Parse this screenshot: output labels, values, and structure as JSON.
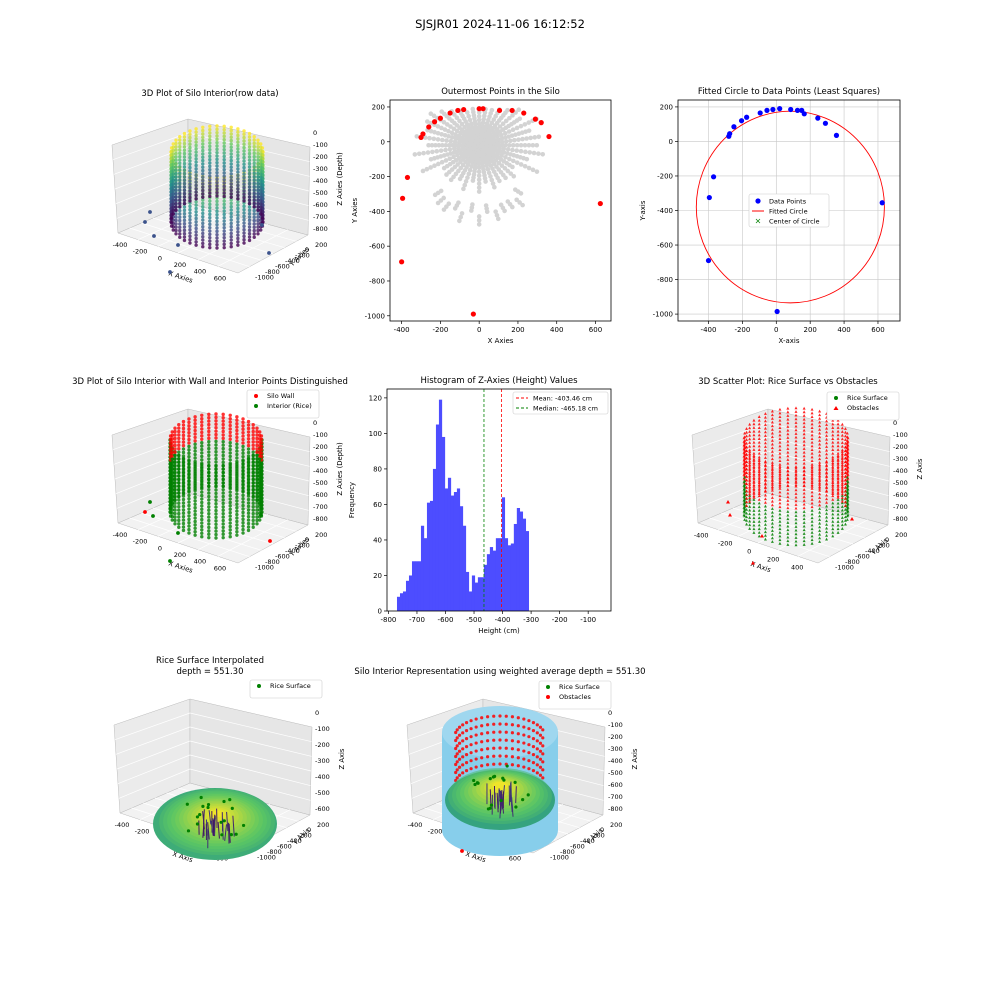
{
  "figure": {
    "suptitle": "SJSJR01 2024-11-06 16:12:52"
  },
  "colors": {
    "viridis": [
      "#440154",
      "#3b528b",
      "#21918c",
      "#5ec962",
      "#fde725"
    ],
    "wall": "#ff0000",
    "interior": "#008000",
    "scatter_gray": "#d3d3d3",
    "data_blue": "#0000ff",
    "hist_blue": "#4d4dff",
    "mean_red": "#ff0000",
    "median_green": "#008000",
    "cylinder": "#87ceeb"
  },
  "chart_data": [
    {
      "id": "p1",
      "type": "scatter3d",
      "title": "3D Plot of Silo Interior(row data)",
      "xlabel": "X Axies",
      "ylabel": "Y Axies",
      "zlabel": "Z Axies (Depth)",
      "x_ticks": [
        "-400",
        "-200",
        "0",
        "200",
        "400",
        "600"
      ],
      "y_ticks": [
        "-1000",
        "-800",
        "-600",
        "-400",
        "-200",
        "0",
        "200"
      ],
      "z_ticks": [
        "-800",
        "-700",
        "-600",
        "-500",
        "-400",
        "-300",
        "-200",
        "-100",
        "0"
      ],
      "colormap": "viridis"
    },
    {
      "id": "p2",
      "type": "scatter",
      "title": "Outermost Points in the Silo",
      "xlabel": "X Axies",
      "ylabel": "Y Axies",
      "x_ticks": [
        -400,
        -200,
        0,
        200,
        400,
        600
      ],
      "y_ticks": [
        200,
        0,
        -200,
        -400,
        -600,
        -800,
        -1000
      ],
      "xlim": [
        -460,
        680
      ],
      "ylim": [
        -1030,
        240
      ],
      "outer_points": [
        [
          -400,
          -690
        ],
        [
          -395,
          -325
        ],
        [
          -370,
          -205
        ],
        [
          -300,
          25
        ],
        [
          -290,
          45
        ],
        [
          -260,
          85
        ],
        [
          -230,
          115
        ],
        [
          -200,
          135
        ],
        [
          -150,
          165
        ],
        [
          -110,
          180
        ],
        [
          -80,
          185
        ],
        [
          0,
          190
        ],
        [
          20,
          190
        ],
        [
          105,
          180
        ],
        [
          170,
          180
        ],
        [
          230,
          165
        ],
        [
          290,
          130
        ],
        [
          320,
          110
        ],
        [
          -30,
          -990
        ],
        [
          360,
          30
        ],
        [
          625,
          -355
        ]
      ]
    },
    {
      "id": "p3",
      "type": "scatter",
      "title": "Fitted Circle to Data Points (Least Squares)",
      "xlabel": "X-axis",
      "ylabel": "Y-axis",
      "x_ticks": [
        -400,
        -200,
        0,
        200,
        400,
        600
      ],
      "y_ticks": [
        200,
        0,
        -200,
        -400,
        -600,
        -800,
        -1000
      ],
      "xlim": [
        -580,
        730
      ],
      "ylim": [
        -1040,
        240
      ],
      "legend": [
        "Data Points",
        "Fitted Circle",
        "Center of Circle"
      ],
      "circle": {
        "cx": 83,
        "cy": -380,
        "r": 555
      },
      "points": [
        [
          -400,
          -690
        ],
        [
          -395,
          -325
        ],
        [
          -370,
          -205
        ],
        [
          -280,
          30
        ],
        [
          -275,
          45
        ],
        [
          -250,
          85
        ],
        [
          -205,
          120
        ],
        [
          -175,
          140
        ],
        [
          -95,
          165
        ],
        [
          -55,
          180
        ],
        [
          -20,
          185
        ],
        [
          20,
          190
        ],
        [
          85,
          185
        ],
        [
          125,
          180
        ],
        [
          165,
          160
        ],
        [
          245,
          135
        ],
        [
          290,
          105
        ],
        [
          355,
          35
        ],
        [
          625,
          -355
        ],
        [
          5,
          -985
        ],
        [
          150,
          180
        ]
      ]
    },
    {
      "id": "p4",
      "type": "scatter3d",
      "title": "3D Plot of Silo Interior with Wall and Interior Points Distinguished",
      "xlabel": "X Axies",
      "ylabel": "Y Axies",
      "zlabel": "Z Axies (Depth)",
      "x_ticks": [
        "-400",
        "-200",
        "0",
        "200",
        "400",
        "600"
      ],
      "y_ticks": [
        "-1000",
        "-800",
        "-600",
        "-400",
        "-200",
        "0",
        "200"
      ],
      "z_ticks": [
        "-800",
        "-700",
        "-600",
        "-500",
        "-400",
        "-300",
        "-200",
        "-100",
        "0"
      ],
      "legend": [
        "Silo Wall",
        "Interior (Rice)"
      ]
    },
    {
      "id": "p5",
      "type": "bar",
      "title": "Histogram of Z-Axies (Height) Values",
      "xlabel": "Height (cm)",
      "ylabel": "Frequency",
      "x_ticks": [
        -800,
        -700,
        -600,
        -500,
        -400,
        -300,
        -200,
        -100
      ],
      "y_ticks": [
        0,
        20,
        40,
        60,
        80,
        100,
        120
      ],
      "xlim": [
        -805,
        -20
      ],
      "ylim": [
        0,
        125
      ],
      "bins_start": -770,
      "bin_width": 10.5,
      "values": [
        8,
        10,
        11,
        17,
        20,
        28,
        28,
        28,
        48,
        41,
        61,
        62,
        80,
        105,
        119,
        98,
        69,
        75,
        65,
        67,
        69,
        59,
        48,
        22,
        11,
        20,
        16,
        19,
        19,
        26,
        32,
        36,
        34,
        41,
        41,
        64,
        41,
        37,
        38,
        49,
        58,
        56,
        52,
        45
      ],
      "mean": -403.46,
      "median": -465.18,
      "legend": [
        "Mean: -403.46 cm",
        "Median: -465.18 cm"
      ]
    },
    {
      "id": "p6",
      "type": "scatter3d",
      "title": "3D Scatter Plot: Rice Surface vs Obstacles",
      "xlabel": "X Axis",
      "ylabel": "Y Axis",
      "zlabel": "Z Axis",
      "x_ticks": [
        "-400",
        "-200",
        "0",
        "200",
        "400"
      ],
      "y_ticks": [
        "-1000",
        "-800",
        "-600",
        "-400",
        "-200",
        "0",
        "200"
      ],
      "z_ticks": [
        "-800",
        "-700",
        "-600",
        "-500",
        "-400",
        "-300",
        "-200",
        "-100",
        "0"
      ],
      "legend": [
        "Rice Surface",
        "Obstacles"
      ]
    },
    {
      "id": "p7",
      "type": "surface3d",
      "title": "Rice Surface Interpolated",
      "subtitle": "depth = 551.30",
      "xlabel": "X Axis",
      "ylabel": "Y Axis",
      "zlabel": "Z Axis",
      "x_ticks": [
        "-400",
        "-200",
        "0",
        "200",
        "400",
        "600"
      ],
      "y_ticks": [
        "-1000",
        "-800",
        "-600",
        "-400",
        "-200",
        "0",
        "200"
      ],
      "z_ticks": [
        "-600",
        "-500",
        "-400",
        "-300",
        "-200",
        "-100",
        "0"
      ],
      "legend": [
        "Rice Surface"
      ]
    },
    {
      "id": "p8",
      "type": "surface3d",
      "title": "Silo Interior Representation using weighted average depth = 551.30",
      "xlabel": "X Axis",
      "ylabel": "Y Axis",
      "zlabel": "Z Axis",
      "x_ticks": [
        "-400",
        "-200",
        "0",
        "200",
        "400",
        "600"
      ],
      "y_ticks": [
        "-1000",
        "-800",
        "-600",
        "-400",
        "-200",
        "0",
        "200"
      ],
      "z_ticks": [
        "-800",
        "-700",
        "-600",
        "-500",
        "-400",
        "-300",
        "-200",
        "-100",
        "0"
      ],
      "legend": [
        "Rice Surface",
        "Obstacles"
      ]
    }
  ]
}
